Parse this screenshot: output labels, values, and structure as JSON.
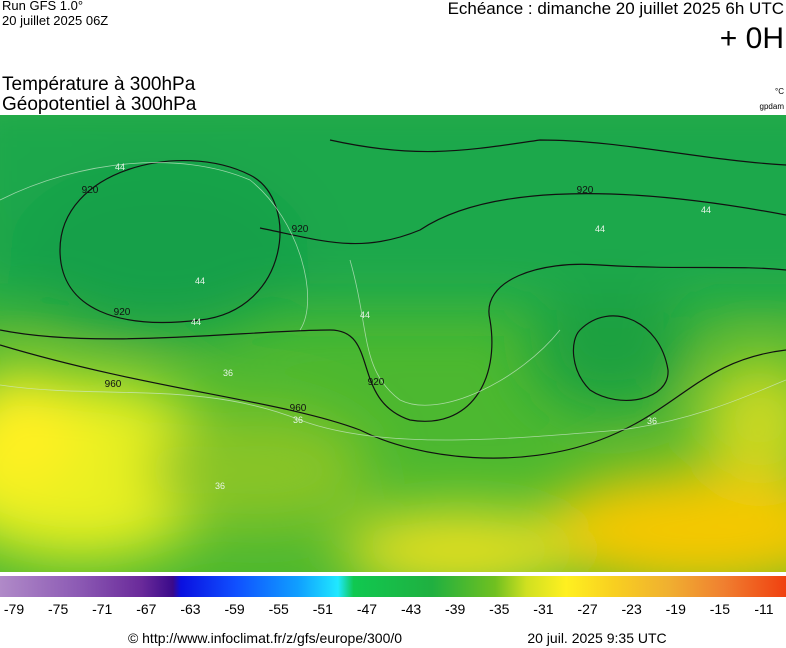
{
  "header": {
    "run": "Run GFS 1.0°",
    "run_date": "20 juillet 2025 06Z",
    "echeance": "Echéance : dimanche 20 juillet 2025 6h UTC",
    "offset": "+ 0H"
  },
  "titles": {
    "temperature": "Température à 300hPa",
    "geopotential": "Géopotentiel à 300hPa",
    "temperature_unit": "°C",
    "geopotential_unit": "gpdam"
  },
  "map": {
    "geopotential_labels": [
      "920",
      "920",
      "920",
      "920",
      "920",
      "960",
      "960"
    ],
    "temperature_labels": [
      "44",
      "44",
      "44",
      "44",
      "44",
      "44",
      "36",
      "36",
      "36",
      "36"
    ]
  },
  "colorbar": {
    "ticks": [
      -79,
      -75,
      -71,
      -67,
      -63,
      -59,
      -55,
      -51,
      -47,
      -43,
      -39,
      -35,
      -31,
      -27,
      -23,
      -19,
      -15,
      -11
    ]
  },
  "footer": {
    "url": "© http://www.infoclimat.fr/z/gfs/europe/300/0",
    "timestamp": "20 juil. 2025  9:35 UTC"
  }
}
